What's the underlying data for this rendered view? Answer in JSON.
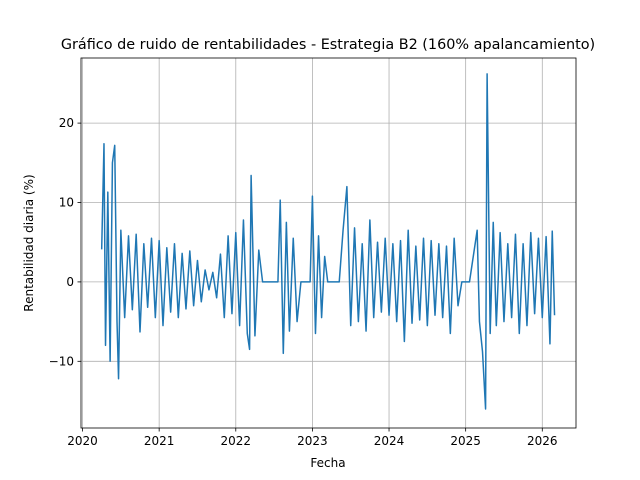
{
  "chart_data": {
    "type": "line",
    "title": "Gráfico de ruido de rentabilidades - Estrategia B2 (160% apalancamiento)",
    "xlabel": "Fecha",
    "ylabel": "Rentabilidad diaria (%)",
    "color": "#1f77b4",
    "grid": true,
    "xlim": [
      2019.98,
      2026.44
    ],
    "ylim": [
      -18.4,
      28.2
    ],
    "xticks": [
      2020,
      2021,
      2022,
      2023,
      2024,
      2025,
      2026
    ],
    "yticks": [
      {
        "value": -10,
        "label": "−10"
      },
      0,
      10,
      20
    ],
    "x": [
      2020.25,
      2020.28,
      2020.3,
      2020.33,
      2020.36,
      2020.39,
      2020.42,
      2020.45,
      2020.47,
      2020.5,
      2020.55,
      2020.6,
      2020.65,
      2020.7,
      2020.75,
      2020.8,
      2020.85,
      2020.9,
      2020.95,
      2021.0,
      2021.05,
      2021.1,
      2021.15,
      2021.2,
      2021.25,
      2021.3,
      2021.35,
      2021.4,
      2021.45,
      2021.5,
      2021.55,
      2021.6,
      2021.65,
      2021.7,
      2021.75,
      2021.8,
      2021.85,
      2021.9,
      2021.95,
      2022.0,
      2022.05,
      2022.1,
      2022.15,
      2022.18,
      2022.2,
      2022.25,
      2022.3,
      2022.35,
      2022.45,
      2022.55,
      2022.58,
      2022.62,
      2022.66,
      2022.7,
      2022.75,
      2022.8,
      2022.85,
      2022.9,
      2022.97,
      2023.0,
      2023.04,
      2023.08,
      2023.12,
      2023.16,
      2023.2,
      2023.27,
      2023.35,
      2023.4,
      2023.45,
      2023.5,
      2023.55,
      2023.6,
      2023.65,
      2023.7,
      2023.75,
      2023.8,
      2023.85,
      2023.9,
      2023.95,
      2024.0,
      2024.05,
      2024.1,
      2024.15,
      2024.2,
      2024.25,
      2024.3,
      2024.35,
      2024.4,
      2024.45,
      2024.5,
      2024.55,
      2024.6,
      2024.65,
      2024.7,
      2024.75,
      2024.8,
      2024.85,
      2024.9,
      2024.95,
      2025.05,
      2025.15,
      2025.18,
      2025.22,
      2025.26,
      2025.28,
      2025.32,
      2025.36,
      2025.4,
      2025.45,
      2025.5,
      2025.55,
      2025.6,
      2025.65,
      2025.7,
      2025.75,
      2025.8,
      2025.85,
      2025.9,
      2025.95,
      2026.0,
      2026.05,
      2026.1,
      2026.13,
      2026.16
    ],
    "values": [
      4.1,
      17.4,
      -8,
      11.3,
      -10,
      15,
      17.2,
      -5,
      -12.2,
      6.5,
      -4.5,
      5.8,
      -3.5,
      6,
      -6.3,
      4.8,
      -3.2,
      5.5,
      -4.5,
      5.2,
      -5.5,
      4.3,
      -3.8,
      4.8,
      -4.5,
      3.6,
      -3.4,
      3.9,
      -3,
      2.7,
      -2.5,
      1.5,
      -1,
      1.2,
      -2,
      3.5,
      -4.5,
      5.8,
      -4,
      6.2,
      -5.5,
      7.8,
      -6.5,
      -8.5,
      13.4,
      -6.8,
      4,
      0,
      0,
      0,
      10.3,
      -9,
      7.5,
      -6.2,
      5.5,
      -5,
      0,
      0,
      0,
      10.8,
      -6.5,
      5.8,
      -4.5,
      3.2,
      0,
      0,
      0,
      6.5,
      12,
      -5.5,
      6.8,
      -5,
      4.8,
      -6.2,
      7.8,
      -4.5,
      5,
      -3.8,
      5.5,
      -4.2,
      4.8,
      -5,
      5.2,
      -7.5,
      6.5,
      -5.2,
      4.5,
      -4.8,
      5.5,
      -5.5,
      5.2,
      -4.2,
      4.8,
      -4.5,
      4.5,
      -6.5,
      5.5,
      -3,
      0,
      0,
      6.5,
      -5,
      -8.8,
      -16,
      26.2,
      -6.5,
      7.5,
      -5.5,
      6.2,
      -5,
      4.8,
      -4.5,
      6,
      -6.5,
      4.8,
      -5.5,
      6.2,
      -4,
      5.5,
      -4.5,
      5.7,
      -7.8,
      6.4,
      -4.2
    ]
  }
}
